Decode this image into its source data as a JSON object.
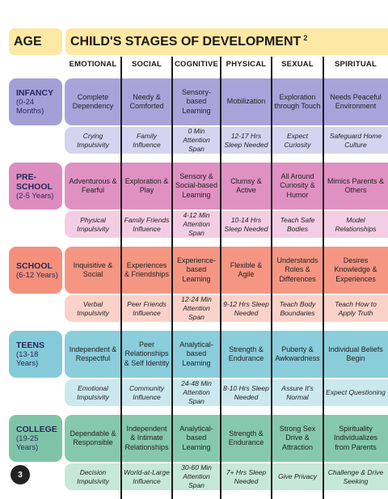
{
  "header": {
    "age_label": "AGE",
    "title": "CHILD'S STAGES OF DEVELOPMENT",
    "footnote": "2"
  },
  "columns": [
    "EMOTIONAL",
    "SOCIAL",
    "COGNITIVE",
    "PHYSICAL",
    "SEXUAL",
    "SPIRITUAL"
  ],
  "stages": [
    {
      "name": "INFANCY",
      "range": "(0-24 Months)",
      "colors": {
        "box": "#a59fd8",
        "top": "#a9a3da",
        "bottom": "#d6d3f0"
      },
      "traits": [
        "Complete Dependency",
        "Needy & Comforted",
        "Sensory-based Learning",
        "Mobilization",
        "Exploration through Touch",
        "Needs Peaceful Environment"
      ],
      "notes": [
        "Crying Impulsivity",
        "Family Influence",
        "0 Min Attention Span",
        "12-17 Hrs Sleep Needed",
        "Expect Curiosity",
        "Safeguard Home Culture"
      ]
    },
    {
      "name": "PRE-SCHOOL",
      "range": "(2-5 Years)",
      "colors": {
        "box": "#dd8cbf",
        "top": "#df91c2",
        "bottom": "#f3cde3"
      },
      "traits": [
        "Adventurous & Fearful",
        "Exploration & Play",
        "Sensory & Social-based Learning",
        "Clumsy & Active",
        "All Around Curiosity & Humor",
        "Mimics Parents & Others"
      ],
      "notes": [
        "Physical Impulsivity",
        "Family Friends Influence",
        "4-12 Min Attention Span",
        "10-14 Hrs Sleep Needed",
        "Teach Safe Bodies",
        "Model Relationships"
      ]
    },
    {
      "name": "SCHOOL",
      "range": "(6-12 Years)",
      "colors": {
        "box": "#f4907c",
        "top": "#f59683",
        "bottom": "#fad2c9"
      },
      "traits": [
        "Inquisitive & Social",
        "Experiences & Friendships",
        "Experience-based Learning",
        "Flexible & Agile",
        "Understands Roles & Differences",
        "Desires Knowledge & Experiences"
      ],
      "notes": [
        "Verbal Impulsivity",
        "Peer Friends Influence",
        "12-24 Min Attention Span",
        "9-12 Hrs Sleep Needed",
        "Teach Body Boundaries",
        "Teach How to Apply Truth"
      ]
    },
    {
      "name": "TEENS",
      "range": "(13-18 Years)",
      "colors": {
        "box": "#84cad9",
        "top": "#8acddb",
        "bottom": "#cbe8ef"
      },
      "traits": [
        "Independent & Respectful",
        "Peer Relationships & Self Identity",
        "Analytical-based Learning",
        "Strength & Endurance",
        "Puberty & Awkwardness",
        "Individual Beliefs Begin"
      ],
      "notes": [
        "Emotional Impulsivity",
        "Community Influence",
        "24-48 Min Attention Span",
        "8-10 Hrs Sleep Needed",
        "Assure It's Normal",
        "Expect Questioning"
      ]
    },
    {
      "name": "COLLEGE",
      "range": "(19-25 Years)",
      "colors": {
        "box": "#7fc4a9",
        "top": "#86c8ae",
        "bottom": "#c6e8da"
      },
      "traits": [
        "Dependable & Responsible",
        "Independent & Intimate Relationships",
        "Analytical-based Learning",
        "Strength & Endurance",
        "Strong Sex Drive & Attraction",
        "Spirituality Individualizes from Parents"
      ],
      "notes": [
        "Decision Impulsivity",
        "World-at-Large Influence",
        "30-60 Min Attention Span",
        "7+ Hrs Sleep Needed",
        "Give Privacy",
        "Challenge & Drive Seeking"
      ]
    }
  ],
  "page_number": "3"
}
